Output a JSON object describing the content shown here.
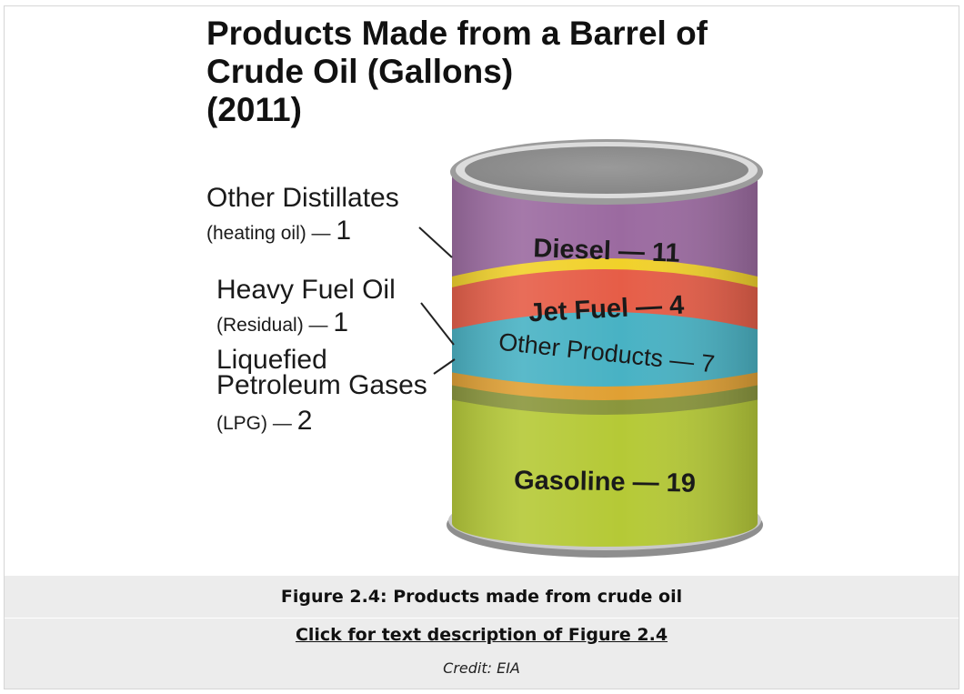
{
  "figure": {
    "title_lines": [
      "Products Made from a Barrel of",
      "Crude Oil (Gallons)",
      "(2011)"
    ],
    "labels": {
      "other_distillates": {
        "name": "Other Distillates",
        "detail": "(heating oil) — ",
        "value": "1"
      },
      "heavy_fuel_oil": {
        "name": "Heavy Fuel Oil",
        "detail": "(Residual) — ",
        "value": "1"
      },
      "lpg": {
        "name_line1": "Liquefied",
        "name_line2": "Petroleum Gases",
        "detail": "(LPG) — ",
        "value": "2"
      }
    },
    "segments": [
      {
        "label": "Diesel — 11",
        "color": "#9b6aa0"
      },
      {
        "label": "",
        "color": "#f1d12a"
      },
      {
        "label": "Jet Fuel — 4",
        "color": "#e65d47"
      },
      {
        "label": "Other Products — 7",
        "color": "#48b2c4"
      },
      {
        "label": "",
        "color": "#e0a033"
      },
      {
        "label": "",
        "color": "#8a963c"
      },
      {
        "label": "Gasoline — 19",
        "color": "#b5c936"
      }
    ]
  },
  "caption": {
    "title": "Figure 2.4: Products made from crude oil",
    "link_text": "Click for text description of Figure 2.4",
    "credit": "Credit: EIA"
  }
}
